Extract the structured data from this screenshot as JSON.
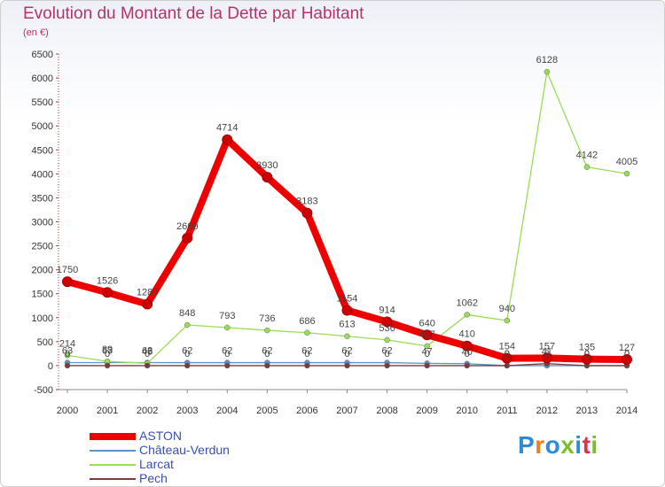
{
  "title": "Evolution du Montant de la Dette par Habitant",
  "subtitle": "(en €)",
  "brand": {
    "text": "Proxiti",
    "letter_colors": [
      "#2f8bd6",
      "#f07f1a",
      "#2f8bd6",
      "#7bbf2a",
      "#2f8bd6",
      "#d8344f",
      "#7bbf2a"
    ]
  },
  "chart_data": {
    "type": "line",
    "x": [
      "2000",
      "2001",
      "2002",
      "2003",
      "2004",
      "2005",
      "2006",
      "2007",
      "2008",
      "2009",
      "2010",
      "2011",
      "2012",
      "2013",
      "2014"
    ],
    "ylim": [
      -500,
      6500
    ],
    "yticks": [
      -500,
      0,
      500,
      1000,
      1500,
      2000,
      2500,
      3000,
      3500,
      4000,
      4500,
      5000,
      5500,
      6000,
      6500
    ],
    "grid": false,
    "legend": "bottom-left",
    "series": [
      {
        "name": "ASTON",
        "color": "#ee0000",
        "emphasis": true,
        "values": [
          1750,
          1526,
          1283,
          2660,
          4714,
          3930,
          3183,
          1154,
          914,
          640,
          410,
          154,
          157,
          135,
          127
        ]
      },
      {
        "name": "Château-Verdun",
        "color": "#5b93c8",
        "values": [
          63,
          63,
          63,
          62,
          62,
          62,
          62,
          62,
          62,
          47,
          40,
          0,
          0,
          0,
          0
        ]
      },
      {
        "name": "Larcat",
        "color": "#99dd55",
        "values": [
          214,
          89,
          48,
          848,
          793,
          736,
          686,
          613,
          536,
          407,
          1062,
          940,
          6128,
          4142,
          4005
        ]
      },
      {
        "name": "Pech",
        "color": "#7a3b3b",
        "values": [
          0,
          0,
          0,
          0,
          0,
          0,
          0,
          0,
          0,
          0,
          0,
          0,
          41,
          0,
          0
        ]
      }
    ]
  }
}
